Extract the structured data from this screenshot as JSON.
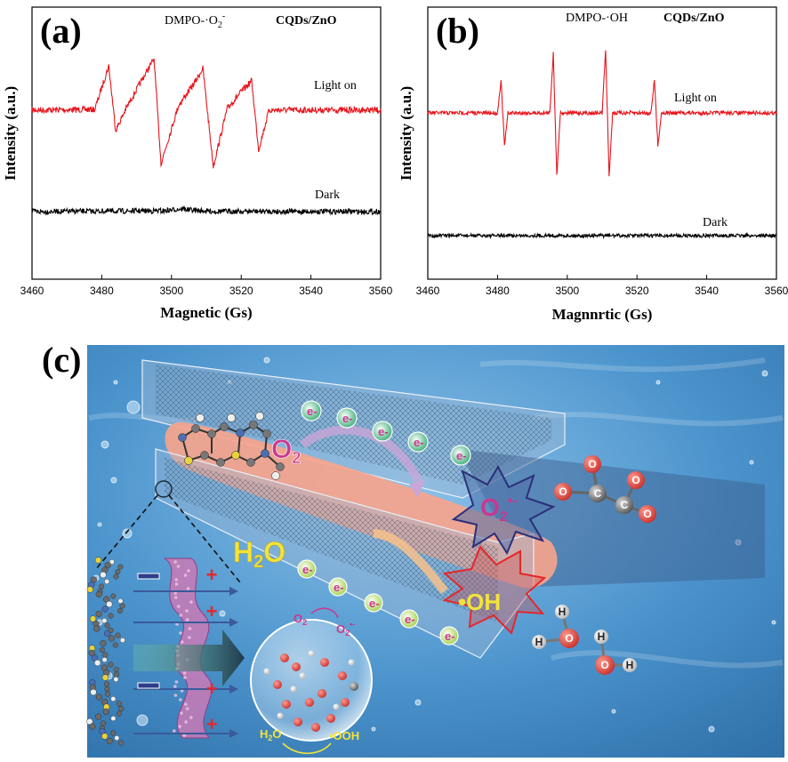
{
  "chart_data": [
    {
      "type": "line",
      "panel": "(a)",
      "title": "DMPO-·O2-",
      "sample": "CQDs/ZnO",
      "xlabel": "Magnetic (Gs)",
      "ylabel": "Intensity (a.u.)",
      "xlim": [
        3460,
        3560
      ],
      "x_ticks": [
        "3460",
        "3480",
        "3500",
        "3520",
        "3540",
        "3560"
      ],
      "series": [
        {
          "name": "Light on",
          "color": "#e8141c",
          "points": [
            [
              3460,
              0.02
            ],
            [
              3478,
              0.03
            ],
            [
              3482,
              0.82
            ],
            [
              3484,
              -0.35
            ],
            [
              3487,
              0.05
            ],
            [
              3492,
              0.62
            ],
            [
              3495,
              0.95
            ],
            [
              3497,
              -0.95
            ],
            [
              3502,
              0.1
            ],
            [
              3507,
              0.55
            ],
            [
              3509,
              0.78
            ],
            [
              3512,
              -1.0
            ],
            [
              3516,
              0.05
            ],
            [
              3520,
              0.35
            ],
            [
              3523,
              0.55
            ],
            [
              3525,
              -0.7
            ],
            [
              3528,
              0.02
            ],
            [
              3560,
              0.02
            ]
          ]
        },
        {
          "name": "Dark",
          "color": "#000000",
          "points": [
            [
              3460,
              0.0
            ],
            [
              3498,
              0.05
            ],
            [
              3503,
              0.18
            ],
            [
              3506,
              0.08
            ],
            [
              3512,
              0.02
            ],
            [
              3560,
              0.0
            ]
          ]
        }
      ]
    },
    {
      "type": "line",
      "panel": "(b)",
      "title": "DMPO-·OH",
      "sample": "CQDs/ZnO",
      "xlabel": "Magnnrtic (Gs)",
      "ylabel": "Intensity (a.u.)",
      "xlim": [
        3460,
        3560
      ],
      "x_ticks": [
        "3460",
        "3480",
        "3500",
        "3520",
        "3540",
        "3560"
      ],
      "series": [
        {
          "name": "Light on",
          "color": "#e8141c",
          "points": [
            [
              3460,
              0.0
            ],
            [
              3480,
              0.0
            ],
            [
              3481,
              0.55
            ],
            [
              3482,
              -0.55
            ],
            [
              3483,
              0.0
            ],
            [
              3495,
              0.0
            ],
            [
              3496,
              1.0
            ],
            [
              3497,
              -1.05
            ],
            [
              3498,
              0.0
            ],
            [
              3510,
              0.0
            ],
            [
              3511,
              1.05
            ],
            [
              3512,
              -1.05
            ],
            [
              3513,
              0.0
            ],
            [
              3524,
              0.0
            ],
            [
              3525,
              0.55
            ],
            [
              3526,
              -0.55
            ],
            [
              3527,
              0.0
            ],
            [
              3560,
              0.0
            ]
          ]
        },
        {
          "name": "Dark",
          "color": "#000000",
          "points": [
            [
              3460,
              0.0
            ],
            [
              3560,
              0.0
            ]
          ]
        }
      ]
    }
  ],
  "panel_c": {
    "letter": "(c)",
    "labels": {
      "o2": "O2",
      "o2_radical": "O2•-",
      "h2o": "H2O",
      "oh_radical": "•OH",
      "electron": "e-",
      "bubble_o2": "O2",
      "bubble_o2_radical": "O2•-",
      "bubble_h2o": "H2O",
      "bubble_ooh": "•OOH",
      "plus": "+",
      "minus": "−",
      "carbon": "C",
      "oxygen": "O",
      "hydrogen": "H"
    },
    "colors": {
      "water": "#4a8fc8",
      "rod": "#f4a38a",
      "o2_text": "#c9388e",
      "h2o_text": "#f3e43a",
      "electron": "#2aa86b",
      "electron_lower": "#9ccc3a",
      "o2_burst": "#2b2f7a",
      "oh_burst": "#e5262b",
      "oxygen_atom": "#e05550",
      "carbon_atom": "#8a8a8a"
    }
  }
}
